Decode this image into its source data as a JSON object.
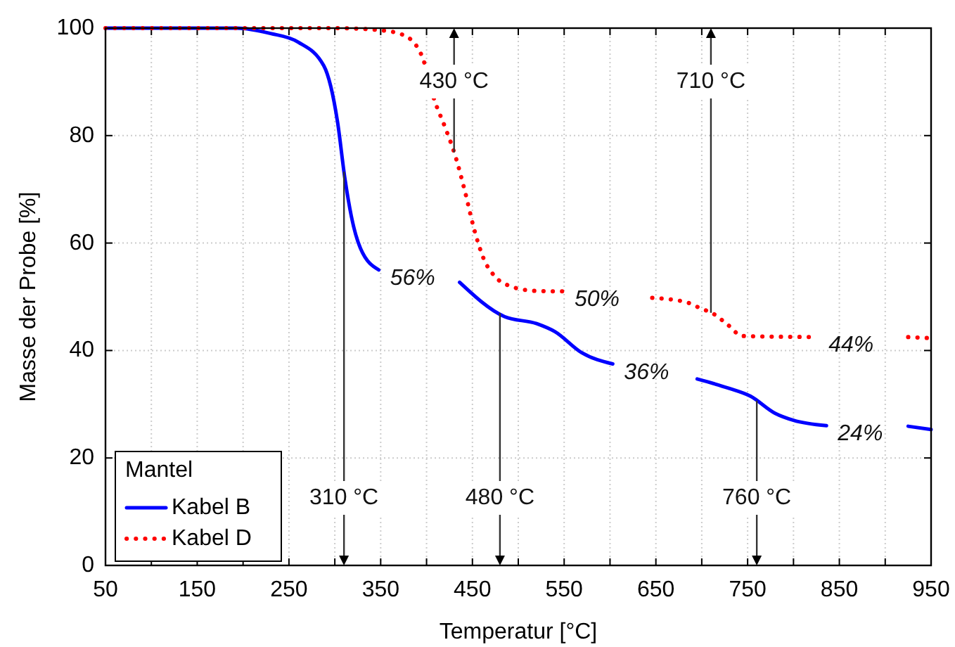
{
  "chart_data": {
    "type": "line",
    "xlabel": "Temperatur [°C]",
    "ylabel": "Masse der Probe [%]",
    "legend_title": "Mantel",
    "legend": "bottom left",
    "grid": true,
    "xlim": [
      50,
      950
    ],
    "ylim": [
      0,
      100
    ],
    "xticks": [
      50,
      {
        "value": 100,
        "label": null
      },
      150,
      {
        "value": 200,
        "label": null
      },
      250,
      {
        "value": 300,
        "label": null
      },
      350,
      {
        "value": 400,
        "label": null
      },
      450,
      {
        "value": 500,
        "label": null
      },
      550,
      {
        "value": 600,
        "label": null
      },
      650,
      {
        "value": 700,
        "label": null
      },
      750,
      {
        "value": 800,
        "label": null
      },
      850,
      {
        "value": 900,
        "label": null
      },
      950
    ],
    "yticks": [
      0,
      20,
      40,
      60,
      80,
      100
    ],
    "series": [
      {
        "name": "Kabel B",
        "color": "#0000ff",
        "line_style": "solid",
        "x": [
          50,
          150,
          193,
          230,
          260,
          288,
          303,
          311,
          318,
          328,
          348,
          392,
          436,
          485,
          520,
          540,
          569,
          603,
          650,
          695,
          729,
          753,
          780,
          800,
          836,
          880,
          925,
          950
        ],
        "values": [
          100,
          100,
          100,
          99,
          97.4,
          93,
          82.5,
          72,
          65,
          59,
          55,
          null,
          52.7,
          46.3,
          45,
          43.5,
          39.6,
          37.5,
          null,
          34.7,
          33,
          31.5,
          28.3,
          27,
          26,
          null,
          25.9,
          25.3
        ]
      },
      {
        "name": "Kabel D",
        "color": "#ff0000",
        "line_style": "dotted",
        "x": [
          50,
          200,
          300,
          350,
          375,
          395,
          408,
          421,
          431,
          442,
          452,
          462,
          475,
          491,
          518,
          549,
          600,
          646,
          683,
          698,
          713,
          729,
          744,
          826,
          880,
          925,
          950
        ],
        "values": [
          100,
          100,
          100,
          99.6,
          98.7,
          94.8,
          86.9,
          81.2,
          76.4,
          69.5,
          62.5,
          57.2,
          53.7,
          52,
          51.1,
          51,
          null,
          49.8,
          49,
          47.9,
          46.8,
          44.7,
          42.7,
          42.5,
          null,
          42.5,
          42.3
        ]
      }
    ],
    "ref_lines": [
      {
        "axis": "x",
        "value": 310,
        "label": "310 °C"
      },
      {
        "axis": "x",
        "value": 480,
        "label": "480 °C"
      },
      {
        "axis": "x",
        "value": 760,
        "label": "760 °C"
      },
      {
        "axis": "x",
        "value": 430,
        "label": "430 °C"
      },
      {
        "axis": "x",
        "value": 710,
        "label": "710 °C"
      }
    ],
    "annotations": [
      {
        "text": "56%",
        "x": 348,
        "y": 55
      },
      {
        "text": "50%",
        "x": 549,
        "y": 51
      },
      {
        "text": "36%",
        "x": 603,
        "y": 37.5
      },
      {
        "text": "44%",
        "x": 826,
        "y": 42.5
      },
      {
        "text": "24%",
        "x": 836,
        "y": 26
      }
    ]
  }
}
